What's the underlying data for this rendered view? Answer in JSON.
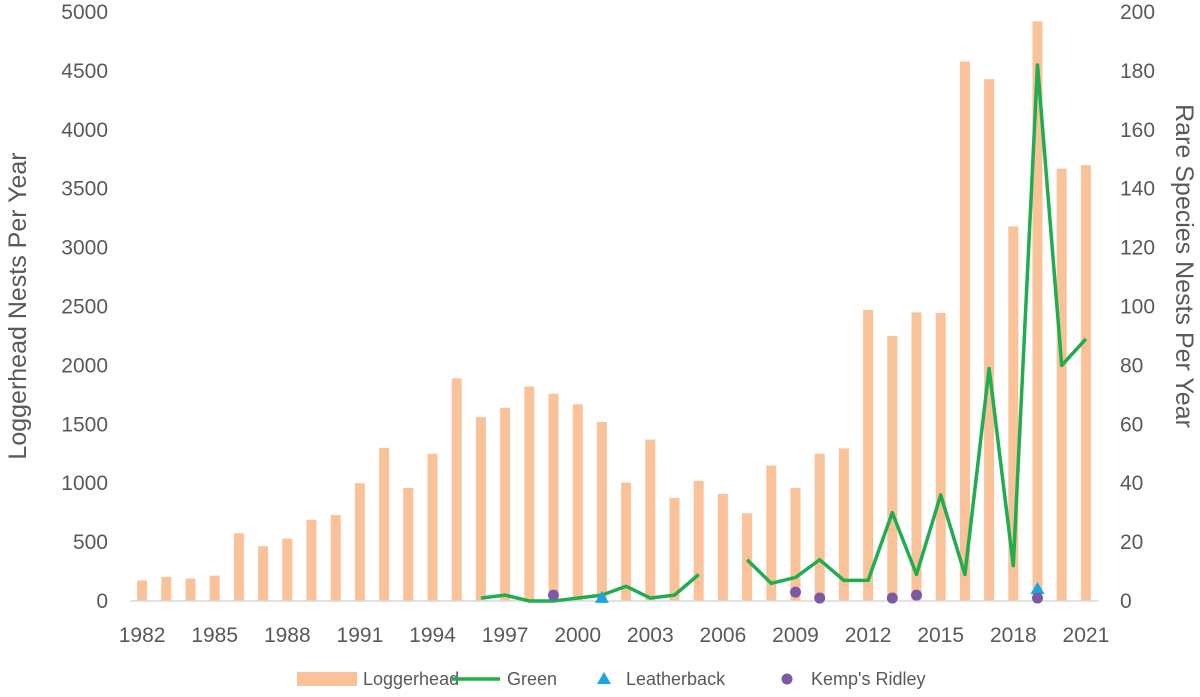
{
  "chart_data": {
    "type": "bar",
    "years": [
      1982,
      1983,
      1984,
      1985,
      1986,
      1987,
      1988,
      1989,
      1990,
      1991,
      1992,
      1993,
      1994,
      1995,
      1996,
      1997,
      1998,
      1999,
      2000,
      2001,
      2002,
      2003,
      2004,
      2005,
      2006,
      2007,
      2008,
      2009,
      2010,
      2011,
      2012,
      2013,
      2014,
      2015,
      2016,
      2017,
      2018,
      2019,
      2020,
      2021
    ],
    "x_tick_labels": [
      "1982",
      "1985",
      "1988",
      "1991",
      "1994",
      "1997",
      "2000",
      "2003",
      "2006",
      "2009",
      "2012",
      "2015",
      "2018",
      "2021"
    ],
    "ylabel": "Loggerhead Nests Per Year",
    "ylabel_right": "Rare Species Nests Per Year",
    "ylim": [
      0,
      5000
    ],
    "ylim_right": [
      0,
      200
    ],
    "y_ticks": [
      "0",
      "500",
      "1000",
      "1500",
      "2000",
      "2500",
      "3000",
      "3500",
      "4000",
      "4500",
      "5000"
    ],
    "y_ticks_right": [
      "0",
      "20",
      "40",
      "60",
      "80",
      "100",
      "120",
      "140",
      "160",
      "180",
      "200"
    ],
    "grid": false,
    "legend_position": "bottom",
    "series": [
      {
        "name": "Loggerhead",
        "type": "bar",
        "axis": "left",
        "color": "#f9c299",
        "values": [
          175,
          205,
          190,
          215,
          575,
          465,
          530,
          690,
          730,
          1000,
          1300,
          960,
          1250,
          1890,
          1560,
          1640,
          1820,
          1760,
          1670,
          1520,
          1005,
          1370,
          875,
          1020,
          910,
          745,
          1150,
          960,
          1250,
          1295,
          2470,
          2250,
          2450,
          2445,
          4580,
          4430,
          3180,
          4920,
          3670,
          3700
        ]
      },
      {
        "name": "Green",
        "type": "line",
        "axis": "right",
        "color": "#1fad4f",
        "values": [
          null,
          null,
          null,
          null,
          null,
          null,
          null,
          null,
          null,
          null,
          null,
          null,
          null,
          null,
          1,
          2,
          0,
          0,
          1,
          2,
          5,
          1,
          2,
          9,
          null,
          14,
          6,
          8,
          14,
          7,
          7,
          30,
          9,
          36,
          9,
          79,
          12,
          182,
          80,
          89
        ]
      },
      {
        "name": "Leatherback",
        "type": "scatter",
        "marker": "triangle",
        "axis": "right",
        "color": "#1ba4e3",
        "points": [
          [
            2001,
            1
          ],
          [
            2019,
            4
          ]
        ]
      },
      {
        "name": "Kemp's Ridley",
        "type": "scatter",
        "marker": "circle",
        "axis": "right",
        "color": "#7a5aa3",
        "points": [
          [
            1999,
            2
          ],
          [
            2009,
            3
          ],
          [
            2010,
            1
          ],
          [
            2013,
            1
          ],
          [
            2014,
            2
          ],
          [
            2019,
            1
          ]
        ]
      }
    ]
  }
}
